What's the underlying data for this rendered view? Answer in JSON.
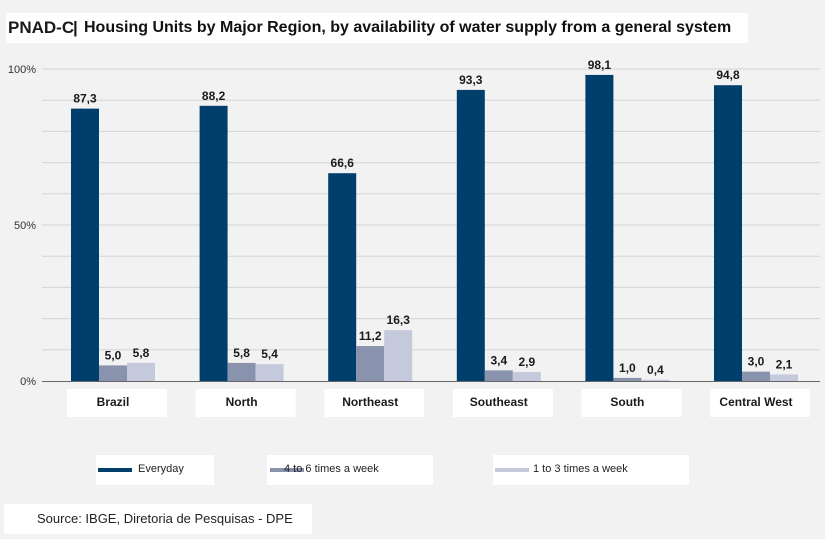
{
  "header": {
    "brand": "PNAD-C",
    "separator": "|",
    "title": "Housing Units by Major Region, by availability of water supply from a general system"
  },
  "chart_data": {
    "type": "bar",
    "title": "Housing Units by Major Region, by availability of water supply from a general system",
    "categories": [
      "Brazil",
      "North",
      "Northeast",
      "Southeast",
      "South",
      "Central West"
    ],
    "series": [
      {
        "name": "Everyday",
        "values": [
          87.3,
          88.2,
          66.6,
          93.3,
          98.1,
          94.8
        ],
        "labels": [
          "87,3",
          "88,2",
          "66,6",
          "93,3",
          "98,1",
          "94,8"
        ],
        "color": "#003f6b"
      },
      {
        "name": "4 to 6 times a week",
        "values": [
          5.0,
          5.8,
          11.2,
          3.4,
          1.0,
          3.0
        ],
        "labels": [
          "5,0",
          "5,8",
          "11,2",
          "3,4",
          "1,0",
          "3,0"
        ],
        "color": "#8a93ad"
      },
      {
        "name": "1 to 3 times a week",
        "values": [
          5.8,
          5.4,
          16.3,
          2.9,
          0.4,
          2.1
        ],
        "labels": [
          "5,8",
          "5,4",
          "16,3",
          "2,9",
          "0,4",
          "2,1"
        ],
        "color": "#c5c9dc"
      }
    ],
    "ylim": [
      0,
      100
    ],
    "yticks": [
      {
        "value": 0,
        "label": "0%"
      },
      {
        "value": 50,
        "label": "50%"
      },
      {
        "value": 100,
        "label": "100%"
      }
    ],
    "grid": true,
    "legend_position": "bottom"
  },
  "source": "Source: IBGE, Diretoria de Pesquisas - DPE"
}
